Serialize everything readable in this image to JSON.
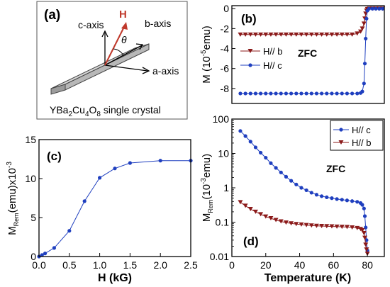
{
  "panel_a": {
    "label": "(a)",
    "axes": {
      "c": "c-axis",
      "b": "b-axis",
      "a": "a-axis"
    },
    "field": "H",
    "angle": "θ",
    "crystal_prefix": "YBa",
    "crystal_sub1": "2",
    "crystal_mid": "Cu",
    "crystal_sub2": "4",
    "crystal_o": "O",
    "crystal_sub3": "8",
    "crystal_suffix": " single crystal",
    "colors": {
      "arrow": "#c0392b",
      "crystal": "#b8b8b8"
    }
  },
  "chart_data": [
    {
      "panel": "(b)",
      "type": "line",
      "annotation": "ZFC",
      "xlim": [
        0,
        90
      ],
      "ylim": [
        -9.5,
        0.3
      ],
      "yticks": [
        "-8",
        "-6",
        "-4",
        "-2",
        "0"
      ],
      "ylabel_main": "M (10",
      "ylabel_exp": "-5",
      "ylabel_tail": "emu)",
      "legend": [
        "H// b",
        "H// c"
      ],
      "series": [
        {
          "name": "H// b",
          "color": "#8b1a1a",
          "marker": "triangle-down",
          "x": [
            5,
            8,
            11,
            14,
            17,
            20,
            23,
            26,
            29,
            32,
            35,
            38,
            41,
            44,
            47,
            50,
            53,
            56,
            59,
            62,
            65,
            68,
            71,
            74,
            76,
            77,
            78,
            78.5,
            79,
            79.5,
            80,
            81,
            83,
            85,
            87,
            89
          ],
          "y": [
            -2.6,
            -2.6,
            -2.6,
            -2.6,
            -2.6,
            -2.6,
            -2.6,
            -2.6,
            -2.6,
            -2.6,
            -2.6,
            -2.6,
            -2.6,
            -2.6,
            -2.6,
            -2.6,
            -2.6,
            -2.6,
            -2.6,
            -2.6,
            -2.6,
            -2.6,
            -2.6,
            -2.5,
            -2.3,
            -2.0,
            -1.5,
            -1.0,
            -0.5,
            -0.2,
            -0.05,
            0,
            0,
            0,
            0,
            0
          ]
        },
        {
          "name": "H// c",
          "color": "#1f3fbf",
          "marker": "circle",
          "x": [
            5,
            8,
            11,
            14,
            17,
            20,
            23,
            26,
            29,
            32,
            35,
            38,
            41,
            44,
            47,
            50,
            53,
            56,
            59,
            62,
            65,
            68,
            71,
            74,
            76,
            77,
            78,
            78.5,
            79,
            79.5,
            80,
            81,
            83,
            85,
            87,
            89
          ],
          "y": [
            -8.5,
            -8.5,
            -8.5,
            -8.5,
            -8.5,
            -8.5,
            -8.5,
            -8.5,
            -8.5,
            -8.5,
            -8.5,
            -8.5,
            -8.5,
            -8.5,
            -8.5,
            -8.5,
            -8.5,
            -8.5,
            -8.5,
            -8.5,
            -8.5,
            -8.5,
            -8.5,
            -8.5,
            -8.45,
            -8.3,
            -7.5,
            -5.5,
            -3.0,
            -1.0,
            -0.2,
            0,
            0,
            0,
            0,
            0
          ]
        }
      ]
    },
    {
      "panel": "(c)",
      "type": "line",
      "xlim": [
        0,
        2.5
      ],
      "ylim": [
        0,
        15
      ],
      "xticks": [
        "0.0",
        "0.5",
        "1.0",
        "1.5",
        "2.0",
        "2.5"
      ],
      "yticks": [
        "0",
        "5",
        "10",
        "15"
      ],
      "xlabel": "H (kG)",
      "ylabel_m": "M",
      "ylabel_sub": "Rem",
      "ylabel_tail": "(emu)x10",
      "ylabel_exp": "-3",
      "series": [
        {
          "color": "#1f3fbf",
          "marker": "circle",
          "x": [
            0.0,
            0.05,
            0.1,
            0.25,
            0.5,
            0.75,
            1.0,
            1.25,
            1.5,
            2.0,
            2.5
          ],
          "y": [
            0.0,
            0.2,
            0.4,
            1.1,
            3.3,
            7.1,
            10.1,
            11.3,
            12.0,
            12.3,
            12.3
          ]
        }
      ]
    },
    {
      "panel": "(d)",
      "type": "line",
      "annotation": "ZFC",
      "scale_y": "log",
      "xlim": [
        0,
        90
      ],
      "ylim": [
        0.01,
        100
      ],
      "xticks": [
        "0",
        "20",
        "40",
        "60",
        "80"
      ],
      "yticks": [
        "0.01",
        "0.1",
        "1",
        "10",
        "100"
      ],
      "xlabel": "Temperature (K)",
      "ylabel_m": "M",
      "ylabel_sub": "Rem",
      "ylabel_mid": "(10",
      "ylabel_exp": "-3",
      "ylabel_tail": "emu)",
      "legend": [
        "H// c",
        "H// b"
      ],
      "series": [
        {
          "name": "H// c",
          "color": "#1f3fbf",
          "marker": "circle",
          "x": [
            5,
            8,
            11,
            14,
            17,
            20,
            23,
            26,
            29,
            32,
            35,
            38,
            41,
            44,
            47,
            50,
            53,
            56,
            59,
            62,
            65,
            68,
            71,
            74,
            76,
            77,
            78,
            78.5,
            79,
            79.5,
            80
          ],
          "y": [
            45,
            32,
            22,
            15,
            10.5,
            7.5,
            5.2,
            3.8,
            2.8,
            2.1,
            1.6,
            1.25,
            1.0,
            0.85,
            0.72,
            0.63,
            0.57,
            0.53,
            0.5,
            0.47,
            0.45,
            0.43,
            0.41,
            0.39,
            0.36,
            0.32,
            0.25,
            0.15,
            0.07,
            0.03,
            0.015
          ]
        },
        {
          "name": "H// b",
          "color": "#8b1a1a",
          "marker": "triangle-down",
          "x": [
            5,
            8,
            11,
            14,
            17,
            20,
            23,
            26,
            29,
            32,
            35,
            38,
            41,
            44,
            47,
            50,
            53,
            56,
            59,
            62,
            65,
            68,
            71,
            74,
            76,
            77,
            78,
            78.5,
            79,
            79.5,
            80
          ],
          "y": [
            0.38,
            0.3,
            0.24,
            0.2,
            0.17,
            0.145,
            0.13,
            0.115,
            0.105,
            0.097,
            0.092,
            0.088,
            0.085,
            0.082,
            0.08,
            0.078,
            0.077,
            0.076,
            0.075,
            0.074,
            0.073,
            0.072,
            0.07,
            0.067,
            0.063,
            0.058,
            0.048,
            0.035,
            0.022,
            0.016,
            0.012
          ]
        }
      ]
    }
  ]
}
